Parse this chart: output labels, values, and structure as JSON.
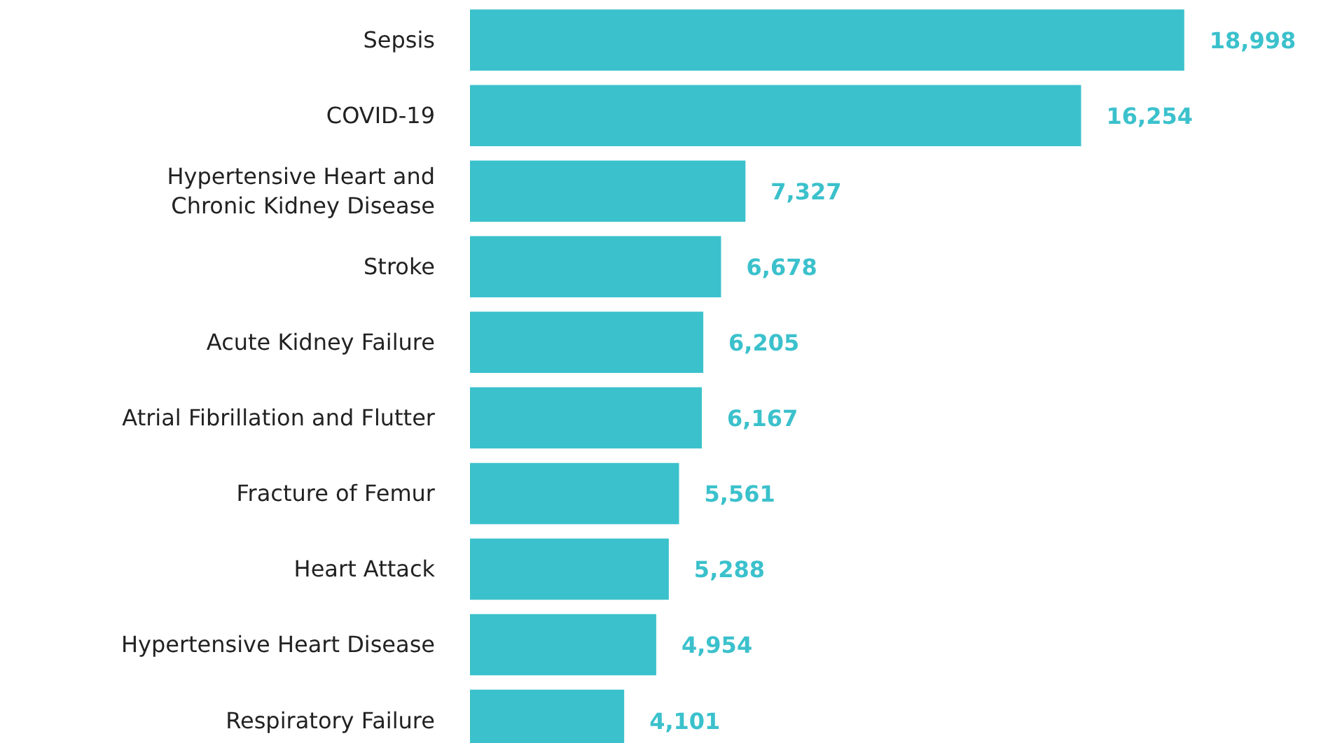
{
  "chart_data": {
    "type": "bar",
    "orientation": "horizontal",
    "categories": [
      "Sepsis",
      "COVID-19",
      "Hypertensive Heart and\nChronic Kidney Disease",
      "Stroke",
      "Acute Kidney Failure",
      "Atrial Fibrillation and Flutter",
      "Fracture of Femur",
      "Heart Attack",
      "Hypertensive Heart Disease",
      "Respiratory Failure"
    ],
    "values": [
      18998,
      16254,
      7327,
      6678,
      6205,
      6167,
      5561,
      5288,
      4954,
      4101
    ],
    "color": "#3bc1cc",
    "value_labels": [
      "18,998",
      "16,254",
      "7,327",
      "6,678",
      "6,205",
      "6,167",
      "5,561",
      "5,288",
      "4,954",
      "4,101"
    ]
  }
}
